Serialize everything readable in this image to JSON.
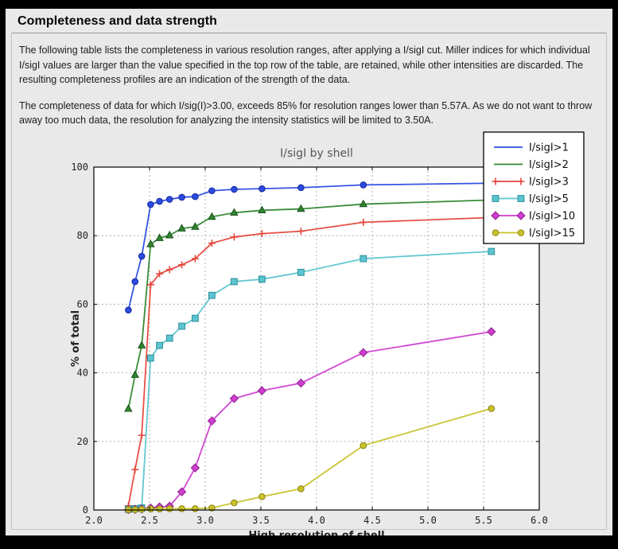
{
  "panel": {
    "title": "Completeness and data strength",
    "paragraph1": "The following table lists the completeness in various resolution ranges, after applying a I/sigI cut. Miller indices for which individual I/sigI values are larger than the value specified in the top row of the table, are retained, while other intensities are discarded. The resulting completeness profiles are an indication of the strength of the data.",
    "paragraph2": "The completeness of data for which I/sig(I)>3.00, exceeds  85% for resolution ranges lower than 5.57A. As we do not want to throw away too much data, the resolution for analyzing the intensity statistics will be limited to 3.50A."
  },
  "chart_data": {
    "type": "line",
    "title": "I/sigI by shell",
    "xlabel": "High resolution of shell",
    "ylabel": "% of total",
    "xlim": [
      2.0,
      6.0
    ],
    "ylim": [
      0,
      100
    ],
    "xticks": [
      2.0,
      2.5,
      3.0,
      3.5,
      4.0,
      4.5,
      5.0,
      5.5,
      6.0
    ],
    "xtick_labels": [
      "2.0",
      "2.5",
      "3.0",
      "3.5",
      "4.0",
      "4.5",
      "5.0",
      "5.5",
      "6.0"
    ],
    "yticks": [
      0,
      20,
      40,
      60,
      80,
      100
    ],
    "ytick_labels": [
      "0",
      "20",
      "40",
      "60",
      "80",
      "100"
    ],
    "grid": true,
    "legend_position": "top-right",
    "plot_background": "#ffffff",
    "grid_color": "#b0b0b0",
    "x": [
      2.31,
      2.37,
      2.43,
      2.51,
      2.59,
      2.68,
      2.79,
      2.91,
      3.06,
      3.26,
      3.51,
      3.86,
      4.42,
      5.57
    ],
    "series": [
      {
        "name": "I/sigI>1",
        "color": "#2c4be0",
        "edge": "#16279b",
        "marker": "circle",
        "legend_markers": false,
        "values": [
          58.3,
          66.6,
          74.0,
          89.1,
          90.0,
          90.6,
          91.2,
          91.4,
          93.1,
          93.5,
          93.7,
          94.0,
          94.8,
          95.3
        ]
      },
      {
        "name": "I/sigI>2",
        "color": "#2f862f",
        "edge": "#1b501b",
        "marker": "triangle",
        "legend_markers": false,
        "values": [
          29.5,
          39.4,
          48.0,
          77.5,
          79.3,
          80.1,
          82.1,
          82.6,
          85.5,
          86.7,
          87.4,
          87.8,
          89.2,
          90.4
        ]
      },
      {
        "name": "I/sigI>3",
        "color": "#e5463b",
        "edge": "#e5463b",
        "marker": "plus",
        "legend_markers": true,
        "values": [
          1.2,
          11.8,
          21.8,
          65.7,
          68.9,
          70.1,
          71.5,
          73.3,
          77.8,
          79.6,
          80.6,
          81.3,
          83.9,
          85.3
        ]
      },
      {
        "name": "I/sigI>5",
        "color": "#5bc4d0",
        "edge": "#2f8f9b",
        "marker": "square",
        "legend_markers": true,
        "values": [
          0.2,
          0.4,
          0.6,
          44.3,
          48.0,
          50.1,
          53.6,
          55.9,
          62.6,
          66.6,
          67.3,
          69.3,
          73.3,
          75.4
        ]
      },
      {
        "name": "I/sigI>10",
        "color": "#cf3ecf",
        "edge": "#8e2290",
        "marker": "diamond",
        "legend_markers": true,
        "values": [
          0.1,
          0.2,
          0.3,
          0.6,
          0.9,
          1.1,
          5.3,
          12.3,
          26.0,
          32.5,
          34.8,
          37.0,
          45.9,
          52.0
        ]
      },
      {
        "name": "I/sigI>15",
        "color": "#c8c22b",
        "edge": "#8c8616",
        "marker": "circle",
        "legend_markers": true,
        "values": [
          0.1,
          0.1,
          0.2,
          0.3,
          0.3,
          0.4,
          0.4,
          0.4,
          0.6,
          2.1,
          3.9,
          6.2,
          18.8,
          29.6
        ]
      }
    ]
  }
}
